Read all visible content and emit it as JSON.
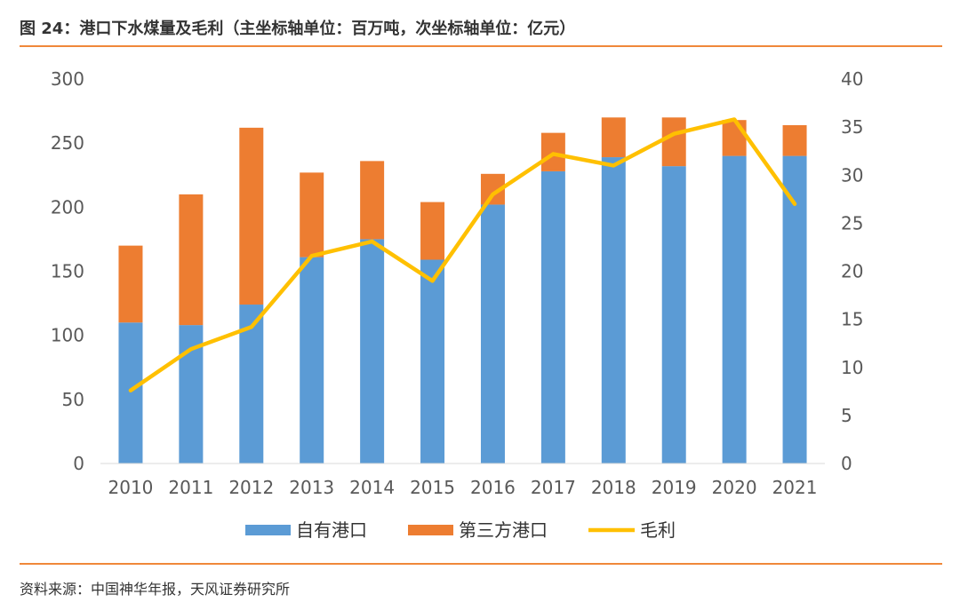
{
  "header": {
    "title": "图 24：港口下水煤量及毛利（主坐标轴单位：百万吨，次坐标轴单位：亿元）"
  },
  "footer": {
    "source": "资料来源：中国神华年报，天风证券研究所"
  },
  "colors": {
    "own_port": "#5b9bd5",
    "third_party_port": "#ed7d31",
    "gross_profit": "#ffc000",
    "rule": "#f0883a",
    "axis": "#d9d9d9",
    "tick_text": "#595959"
  },
  "chart_data": {
    "type": "bar",
    "stacked": true,
    "title": "港口下水煤量及毛利",
    "categories": [
      "2010",
      "2011",
      "2012",
      "2013",
      "2014",
      "2015",
      "2016",
      "2017",
      "2018",
      "2019",
      "2020",
      "2021"
    ],
    "series": [
      {
        "name": "自有港口",
        "type": "bar",
        "axis": "primary",
        "values": [
          110,
          108,
          124,
          161,
          175,
          159,
          202,
          228,
          239,
          232,
          240,
          240
        ]
      },
      {
        "name": "第三方港口",
        "type": "bar",
        "axis": "primary",
        "values": [
          60,
          102,
          138,
          66,
          61,
          45,
          24,
          30,
          31,
          38,
          28,
          24
        ]
      },
      {
        "name": "毛利",
        "type": "line",
        "axis": "secondary",
        "values": [
          7.6,
          11.9,
          14.2,
          21.6,
          23.1,
          19.0,
          28.0,
          32.2,
          31.0,
          34.3,
          35.8,
          27.0
        ]
      }
    ],
    "y_primary": {
      "min": 0,
      "max": 300,
      "ticks": [
        "0",
        "50",
        "100",
        "150",
        "200",
        "250",
        "300"
      ],
      "unit": "百万吨"
    },
    "y_secondary": {
      "min": 0,
      "max": 40,
      "ticks": [
        "0",
        "5",
        "10",
        "15",
        "20",
        "25",
        "30",
        "35",
        "40"
      ],
      "unit": "亿元"
    },
    "grid": false,
    "legend": [
      "自有港口",
      "第三方港口",
      "毛利"
    ],
    "legend_position": "bottom"
  }
}
